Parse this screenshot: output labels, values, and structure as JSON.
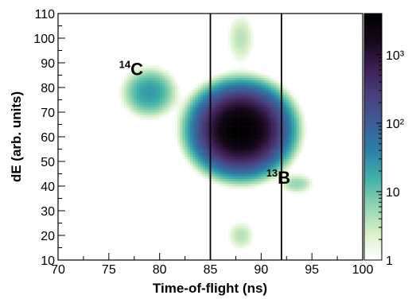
{
  "chart_data": {
    "type": "heatmap",
    "title": "",
    "xlabel": "Time-of-flight (ns)",
    "ylabel": "dE (arb. units)",
    "xlim": [
      70,
      100
    ],
    "ylim": [
      10,
      110
    ],
    "x_ticks": [
      70,
      75,
      80,
      85,
      90,
      95,
      100
    ],
    "y_ticks": [
      10,
      20,
      30,
      40,
      50,
      60,
      70,
      80,
      90,
      100,
      110
    ],
    "color_scale": {
      "type": "log",
      "range": [
        1,
        4000
      ],
      "ticks": [
        {
          "value": 1,
          "label": "1"
        },
        {
          "value": 10,
          "label": "10"
        },
        {
          "value": 100,
          "label": "10²"
        },
        {
          "value": 1000,
          "label": "10³"
        }
      ],
      "colors": [
        "#ffffff",
        "#d8f0c8",
        "#8fd3b0",
        "#40b0a8",
        "#2a7fa8",
        "#3e5c98",
        "#493f7c",
        "#3c1f52",
        "#150818",
        "#000000"
      ]
    },
    "clusters": [
      {
        "label": "¹⁴C",
        "x_center": 79,
        "y_center": 78,
        "x_sigma": 1.2,
        "y_sigma": 4.5,
        "peak_counts": 25
      },
      {
        "label": "",
        "x_center": 88,
        "y_center": 63,
        "x_sigma": 1.6,
        "y_sigma": 6,
        "peak_counts": 4000
      },
      {
        "label": "¹³B",
        "x_center": 93.5,
        "y_center": 41,
        "x_sigma": 0.9,
        "y_sigma": 2.2,
        "peak_counts": 6
      },
      {
        "label": "",
        "x_center": 88,
        "y_center": 20,
        "x_sigma": 0.8,
        "y_sigma": 3.5,
        "peak_counts": 4
      },
      {
        "label": "",
        "x_center": 88,
        "y_center": 100,
        "x_sigma": 0.8,
        "y_sigma": 6,
        "peak_counts": 4
      }
    ],
    "vertical_lines": [
      85,
      92
    ],
    "annotations": [
      {
        "base": "C",
        "superscript": "14",
        "x": 76,
        "y": 85
      },
      {
        "base": "B",
        "superscript": "13",
        "x": 90.5,
        "y": 41
      }
    ]
  }
}
